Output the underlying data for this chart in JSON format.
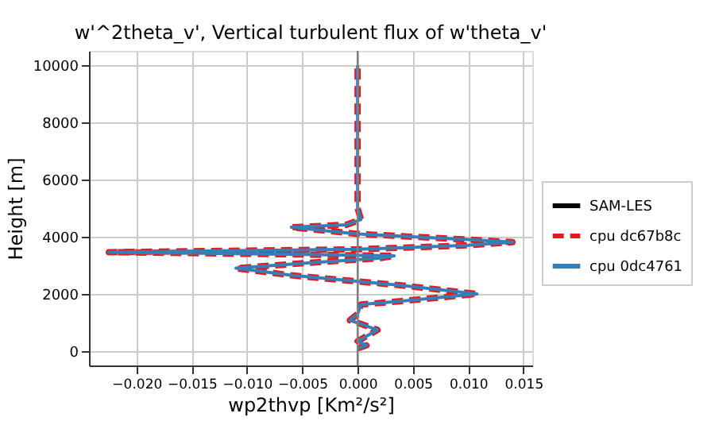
{
  "chart_data": {
    "type": "line",
    "title": "w'^2theta_v', Vertical turbulent flux of w'theta_v'",
    "xlabel": "wp2thvp [Km²/s²]",
    "ylabel": "Height [m]",
    "xlim": [
      -0.0243,
      0.0158
    ],
    "ylim": [
      -500,
      10500
    ],
    "xticks": [
      {
        "value": -0.02,
        "label": "−0.020"
      },
      {
        "value": -0.015,
        "label": "−0.015"
      },
      {
        "value": -0.01,
        "label": "−0.010"
      },
      {
        "value": -0.005,
        "label": "−0.005"
      },
      {
        "value": 0,
        "label": "0.000"
      },
      {
        "value": 0.005,
        "label": "0.005"
      },
      {
        "value": 0.01,
        "label": "0.010"
      },
      {
        "value": 0.015,
        "label": "0.015"
      }
    ],
    "yticks": [
      0,
      2000,
      4000,
      6000,
      8000,
      10000
    ],
    "grid": true,
    "legend": "right",
    "ref_lines": [
      {
        "axis": "x",
        "value": 0,
        "color": "#808080"
      }
    ],
    "series": [
      {
        "name": "SAM-LES",
        "color": "#000000",
        "line_style": "solid"
      },
      {
        "name": "cpu dc67b8c",
        "color": "#e41a1c",
        "line_style": "dashed",
        "x": [
          0.0,
          0.0008,
          0.0,
          0.0018,
          0.0003,
          -0.0007,
          0.0,
          0.0003,
          0.004,
          0.0108,
          0.004,
          -0.006,
          -0.011,
          -0.004,
          0.002,
          0.0033,
          -0.005,
          -0.0225,
          0.0,
          0.01,
          0.014,
          0.01,
          0.0,
          -0.006,
          -0.001,
          0.0003,
          0.0,
          0.0
        ],
        "values": [
          100,
          200,
          350,
          740,
          950,
          1080,
          1300,
          1630,
          1750,
          2000,
          2300,
          2650,
          2900,
          3100,
          3250,
          3330,
          3380,
          3460,
          3560,
          3700,
          3810,
          3900,
          4100,
          4330,
          4420,
          4600,
          5000,
          10000
        ]
      },
      {
        "name": "cpu 0dc4761",
        "color": "#377eb8",
        "line_style": "solid",
        "x": [
          0.0,
          0.0008,
          0.0,
          0.0018,
          0.0003,
          -0.0007,
          0.0,
          0.0003,
          0.004,
          0.0108,
          0.004,
          -0.006,
          -0.011,
          -0.004,
          0.002,
          0.0033,
          -0.005,
          -0.0225,
          0.0,
          0.01,
          0.014,
          0.01,
          0.0,
          -0.006,
          -0.001,
          0.0003,
          0.0,
          0.0
        ],
        "values": [
          100,
          200,
          350,
          740,
          950,
          1080,
          1300,
          1630,
          1750,
          2000,
          2300,
          2650,
          2900,
          3100,
          3250,
          3330,
          3380,
          3460,
          3560,
          3700,
          3810,
          3900,
          4100,
          4330,
          4420,
          4600,
          5000,
          10000
        ]
      }
    ]
  }
}
